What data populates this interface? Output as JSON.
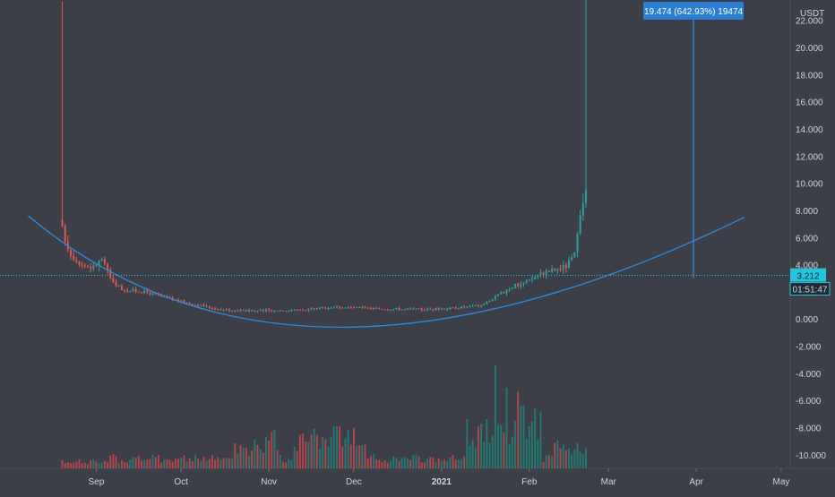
{
  "chart_data": {
    "type": "candlestick",
    "symbol_currency": "USDT",
    "y_axis": {
      "min": -11,
      "max": 23.5,
      "ticks": [
        "22.000",
        "20.000",
        "18.000",
        "16.000",
        "14.000",
        "12.000",
        "10.000",
        "8.000",
        "6.000",
        "4.000",
        "0.000",
        "-2.000",
        "-4.000",
        "-6.000",
        "-8.000",
        "-10.000"
      ],
      "tick_values": [
        22,
        20,
        18,
        16,
        14,
        12,
        10,
        8,
        6,
        4,
        0,
        -2,
        -4,
        -6,
        -8,
        -10
      ]
    },
    "x_axis": {
      "labels": [
        "Sep",
        "Oct",
        "Nov",
        "Dec",
        "2021",
        "Feb",
        "Mar",
        "Apr",
        "May"
      ],
      "label_dates": [
        "2020-09-01",
        "2020-10-01",
        "2020-11-01",
        "2020-12-01",
        "2021-01-01",
        "2021-02-01",
        "2021-03-01",
        "2021-04-01",
        "2021-05-01"
      ],
      "bold_label": "2021",
      "start_date": "2020-07-29",
      "end_date": "2021-05-20"
    },
    "last_price": {
      "value": 3.212,
      "label": "3.212",
      "countdown": "01:51:47"
    },
    "measure_tool": {
      "label": "19.474 (642.93%) 19474",
      "date": "2021-03-31",
      "from": 3.03,
      "to": 22.5
    },
    "arc_curve": {
      "start": {
        "date": "2020-08-08",
        "value": 7.6
      },
      "bottom": {
        "date": "2020-11-26",
        "value": -0.6
      },
      "end": {
        "date": "2021-04-18",
        "value": 7.5
      }
    },
    "price_shape": [
      [
        "2020-08-20",
        6.5
      ],
      [
        "2020-08-23",
        4.8
      ],
      [
        "2020-08-27",
        4.0
      ],
      [
        "2020-08-31",
        3.8
      ],
      [
        "2020-09-03",
        4.4
      ],
      [
        "2020-09-06",
        3.0
      ],
      [
        "2020-09-10",
        2.2
      ],
      [
        "2020-09-18",
        2.0
      ],
      [
        "2020-09-25",
        1.6
      ],
      [
        "2020-10-05",
        1.1
      ],
      [
        "2020-10-15",
        0.7
      ],
      [
        "2020-10-25",
        0.6
      ],
      [
        "2020-11-10",
        0.65
      ],
      [
        "2020-11-25",
        0.9
      ],
      [
        "2020-12-10",
        0.75
      ],
      [
        "2020-12-25",
        0.7
      ],
      [
        "2021-01-05",
        0.8
      ],
      [
        "2021-01-15",
        1.0
      ],
      [
        "2021-01-20",
        1.6
      ],
      [
        "2021-01-25",
        2.3
      ],
      [
        "2021-02-01",
        2.8
      ],
      [
        "2021-02-05",
        3.4
      ],
      [
        "2021-02-10",
        3.6
      ],
      [
        "2021-02-14",
        3.9
      ],
      [
        "2021-02-17",
        4.7
      ],
      [
        "2021-02-19",
        7.2
      ],
      [
        "2021-02-21",
        9.5
      ]
    ],
    "colors": {
      "background": "#3c3f48",
      "up": "#26a69a",
      "down": "#ef5350",
      "up_volume": "#1f7a72",
      "down_volume": "#b8434b",
      "curve": "#2c8be0",
      "last_price_line": "#26c6da",
      "axis_text": "#d1d4dc",
      "measure_bg": "#2a7fd4"
    }
  }
}
